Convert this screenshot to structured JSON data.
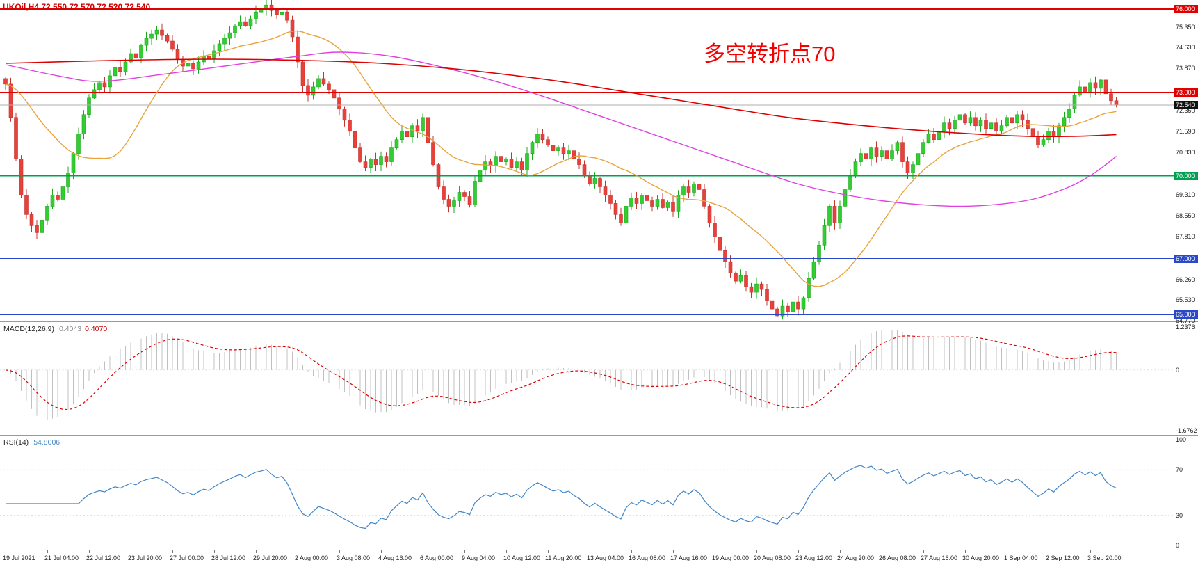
{
  "header": {
    "symbol_ohlc": "UKOil,H4 72.550 72.570 72.520 72.540"
  },
  "annotation": {
    "text": "多空转折点70",
    "color": "#f50000"
  },
  "colors": {
    "up": "#33CC33",
    "up_stroke": "#1DA81D",
    "down": "#E8403B",
    "down_stroke": "#C43530",
    "ma_fast": "#E8A33D",
    "ma_mid": "#E040E0",
    "ma_slow": "#DD0000",
    "macd_hist": "#C0C0C0",
    "macd_signal": "#DD0000",
    "rsi_line": "#4086C8",
    "current_line": "#AFAFAF",
    "axis_text": "#222222"
  },
  "chart_data": {
    "type": "candlestick",
    "symbol": "UKOil",
    "timeframe": "H4",
    "price_range": [
      64.75,
      76.33
    ],
    "price_ticks": [
      "75.350",
      "74.630",
      "73.870",
      "72.350",
      "71.590",
      "70.830",
      "69.310",
      "68.550",
      "67.810",
      "66.260",
      "65.530",
      "64.770"
    ],
    "hlines": [
      {
        "label": "76.000",
        "price": 76.0,
        "color": "#E00000",
        "width": 2
      },
      {
        "label": "73.000",
        "price": 73.0,
        "color": "#E00000",
        "width": 2
      },
      {
        "label": "70.000",
        "price": 70.0,
        "color": "#00A050",
        "width": 2
      },
      {
        "label": "67.000",
        "price": 67.0,
        "color": "#2A49C8",
        "width": 2
      },
      {
        "label": "65.000",
        "price": 65.0,
        "color": "#2A49C8",
        "width": 2
      }
    ],
    "current_price": {
      "label": "72.540",
      "price": 72.54
    },
    "closes": [
      73.3,
      72.1,
      70.6,
      69.3,
      68.6,
      68.2,
      67.95,
      68.4,
      68.9,
      69.3,
      69.15,
      69.6,
      70.1,
      70.8,
      71.5,
      72.2,
      72.8,
      73.1,
      73.35,
      73.2,
      73.6,
      73.9,
      73.75,
      74.1,
      74.4,
      74.25,
      74.7,
      74.95,
      75.1,
      75.25,
      75.05,
      74.85,
      74.55,
      74.2,
      73.95,
      74.05,
      73.85,
      74.1,
      74.3,
      74.2,
      74.5,
      74.75,
      74.95,
      75.15,
      75.4,
      75.55,
      75.4,
      75.65,
      75.9,
      76.0,
      76.15,
      75.95,
      75.8,
      75.9,
      75.6,
      75.0,
      74.1,
      73.25,
      72.9,
      73.2,
      73.5,
      73.3,
      73.1,
      72.8,
      72.4,
      72.0,
      71.6,
      71.0,
      70.5,
      70.3,
      70.6,
      70.4,
      70.7,
      70.5,
      71.0,
      71.3,
      71.6,
      71.4,
      71.8,
      71.6,
      72.1,
      71.2,
      70.4,
      69.6,
      69.15,
      68.9,
      69.1,
      69.4,
      69.25,
      68.95,
      69.8,
      70.2,
      70.5,
      70.35,
      70.7,
      70.5,
      70.6,
      70.3,
      70.5,
      70.2,
      70.8,
      71.2,
      71.5,
      71.3,
      71.1,
      70.9,
      71.0,
      70.8,
      70.9,
      70.6,
      70.4,
      70.0,
      69.7,
      69.9,
      69.6,
      69.3,
      69.0,
      68.6,
      68.3,
      68.9,
      69.2,
      69.0,
      69.3,
      69.1,
      68.9,
      69.15,
      68.85,
      69.05,
      68.7,
      69.3,
      69.6,
      69.4,
      69.7,
      69.5,
      68.9,
      68.3,
      67.8,
      67.3,
      66.9,
      66.5,
      66.2,
      66.4,
      66.0,
      65.8,
      66.1,
      65.9,
      65.5,
      65.2,
      64.95,
      65.3,
      65.1,
      65.45,
      65.2,
      65.6,
      66.3,
      66.9,
      67.5,
      68.2,
      68.9,
      68.3,
      68.9,
      69.5,
      70.0,
      70.5,
      70.8,
      70.6,
      71.0,
      70.7,
      70.9,
      70.6,
      70.9,
      71.2,
      70.5,
      70.1,
      70.4,
      70.8,
      71.2,
      71.5,
      71.3,
      71.6,
      71.9,
      71.7,
      72.0,
      72.2,
      71.9,
      72.1,
      71.8,
      72.0,
      71.7,
      71.9,
      71.6,
      71.8,
      72.1,
      71.9,
      72.2,
      72.0,
      71.7,
      71.4,
      71.1,
      71.3,
      71.6,
      71.4,
      71.8,
      72.1,
      72.4,
      72.9,
      73.2,
      73.0,
      73.35,
      73.15,
      73.45,
      72.95,
      72.7,
      72.54
    ],
    "ma_slow_points": [
      [
        0,
        74.05
      ],
      [
        20,
        74.15
      ],
      [
        40,
        74.2
      ],
      [
        58,
        74.15
      ],
      [
        72,
        74.05
      ],
      [
        86,
        73.85
      ],
      [
        98,
        73.6
      ],
      [
        108,
        73.35
      ],
      [
        118,
        73.05
      ],
      [
        128,
        72.75
      ],
      [
        138,
        72.45
      ],
      [
        150,
        72.1
      ],
      [
        162,
        71.85
      ],
      [
        174,
        71.65
      ],
      [
        186,
        71.5
      ],
      [
        196,
        71.42
      ],
      [
        205,
        71.42
      ],
      [
        213,
        71.48
      ]
    ],
    "ma_mid_points": [
      [
        0,
        74.0
      ],
      [
        10,
        73.6
      ],
      [
        18,
        73.4
      ],
      [
        30,
        73.65
      ],
      [
        44,
        74.0
      ],
      [
        56,
        74.3
      ],
      [
        64,
        74.45
      ],
      [
        74,
        74.3
      ],
      [
        84,
        73.9
      ],
      [
        94,
        73.4
      ],
      [
        104,
        72.8
      ],
      [
        114,
        72.15
      ],
      [
        124,
        71.5
      ],
      [
        134,
        70.85
      ],
      [
        144,
        70.2
      ],
      [
        152,
        69.7
      ],
      [
        160,
        69.35
      ],
      [
        168,
        69.1
      ],
      [
        176,
        68.95
      ],
      [
        184,
        68.9
      ],
      [
        192,
        69.0
      ],
      [
        198,
        69.2
      ],
      [
        204,
        69.6
      ],
      [
        208,
        70.0
      ],
      [
        211,
        70.4
      ],
      [
        213,
        70.7
      ]
    ],
    "macd": {
      "name": "MACD(12,26,9)",
      "value1": "0.4043",
      "value2": "0.4070",
      "axis": {
        "max_label": "1.2376",
        "zero_label": "0",
        "min_label": "-1.6762",
        "max": 1.2376,
        "min": -1.6762
      }
    },
    "rsi": {
      "name": "RSI(14)",
      "value": "54.8006",
      "axis_labels": [
        "100",
        "70",
        "30",
        "0"
      ],
      "levels": [
        70,
        30
      ]
    },
    "x_labels": [
      "19 Jul 2021",
      "21 Jul 04:00",
      "22 Jul 12:00",
      "23 Jul 20:00",
      "27 Jul 00:00",
      "28 Jul 12:00",
      "29 Jul 20:00",
      "2 Aug 00:00",
      "3 Aug 08:00",
      "4 Aug 16:00",
      "6 Aug 00:00",
      "9 Aug 04:00",
      "10 Aug 12:00",
      "11 Aug 20:00",
      "13 Aug 04:00",
      "16 Aug 08:00",
      "17 Aug 16:00",
      "19 Aug 00:00",
      "20 Aug 08:00",
      "23 Aug 12:00",
      "24 Aug 20:00",
      "26 Aug 08:00",
      "27 Aug 16:00",
      "30 Aug 20:00",
      "1 Sep 04:00",
      "2 Sep 12:00",
      "3 Sep 20:00"
    ]
  }
}
